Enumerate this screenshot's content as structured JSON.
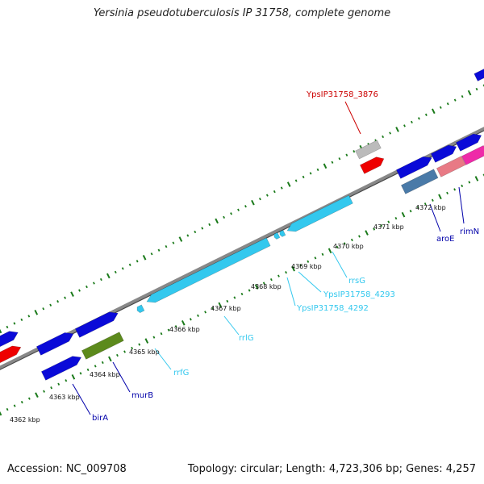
{
  "title": "Yersinia pseudotuberculosis IP 31758, complete genome",
  "footer": {
    "accession": "Accession: NC_009708",
    "summary": "Topology: circular; Length: 4,723,306 bp; Genes: 4,257"
  },
  "colors": {
    "protein_gene": "#0a0ad8",
    "rRNA_gene": "#33c8ee",
    "label_dark_blue": "#0000aa",
    "label_cyan": "#33c8ee",
    "label_red": "#cc0000",
    "pseudo_gene": "#bbbbbb",
    "highlight_red": "#ee0000",
    "pink_gene": "#ee2aa8",
    "salmon_gene": "#e87a85",
    "olive_gene": "#5c8a1c",
    "steel_gene": "#4a7aa8",
    "tick_green": "#1a7a1a",
    "backbone": "#888888"
  },
  "kbp_labels": [
    "4362 kbp",
    "4363 kbp",
    "4364 kbp",
    "4365 kbp",
    "4366 kbp",
    "4367 kbp",
    "4368 kbp",
    "4369 kbp",
    "4370 kbp",
    "4371 kbp",
    "4372 kbp"
  ],
  "gene_labels": [
    {
      "text": "YpsIP31758_3876",
      "color": "label_red"
    },
    {
      "text": "aroE",
      "color": "label_dark_blue"
    },
    {
      "text": "rimN",
      "color": "label_dark_blue"
    },
    {
      "text": "rrsG",
      "color": "label_cyan"
    },
    {
      "text": "YpsIP31758_4293",
      "color": "label_cyan"
    },
    {
      "text": "YpsIP31758_4292",
      "color": "label_cyan"
    },
    {
      "text": "rrlG",
      "color": "label_cyan"
    },
    {
      "text": "rrfG",
      "color": "label_cyan"
    },
    {
      "text": "murB",
      "color": "label_dark_blue"
    },
    {
      "text": "birA",
      "color": "label_dark_blue"
    }
  ]
}
